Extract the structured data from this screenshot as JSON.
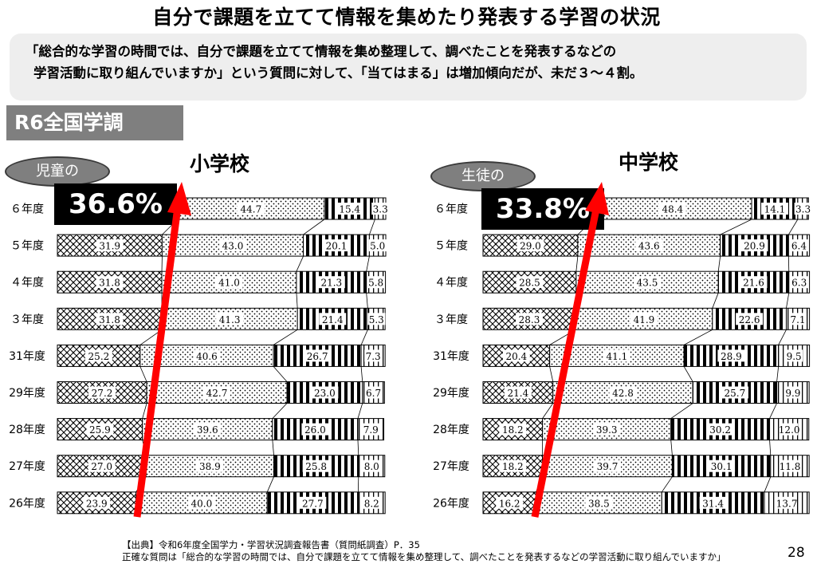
{
  "title": "自分で課題を立てて情報を集めたり発表する学習の状況",
  "summary": {
    "line1": "「総合的な学習の時間では、自分で課題を立てて情報を集め整理して、調べたことを発表するなどの",
    "line2": "学習活動に取り組んでいますか」という質問に対して、「当てはまる」は増加傾向だが、未だ３～４割。"
  },
  "badge": "R6全国学調",
  "colors": {
    "arrow": "#ff0000",
    "badge": "#7f7f7f",
    "summary_bg": "#eeeeee",
    "highlight_bg": "#000000"
  },
  "chart_data": [
    {
      "type": "bar",
      "stacked": true,
      "orientation": "horizontal",
      "title": "小学校",
      "categories": [
        "６年度",
        "５年度",
        "４年度",
        "３年度",
        "31年度",
        "29年度",
        "28年度",
        "27年度",
        "26年度"
      ],
      "series": [
        {
          "values": [
            null,
            31.9,
            31.8,
            31.8,
            25.2,
            27.2,
            25.9,
            27.0,
            23.9
          ]
        },
        {
          "values": [
            44.7,
            43.0,
            41.0,
            41.3,
            40.6,
            42.7,
            39.6,
            38.9,
            40.0
          ]
        },
        {
          "values": [
            15.4,
            20.1,
            21.3,
            21.4,
            26.7,
            23.0,
            26.0,
            25.8,
            27.7
          ]
        },
        {
          "values": [
            3.3,
            5.0,
            5.8,
            5.3,
            7.3,
            6.7,
            7.9,
            8.0,
            8.2
          ]
        }
      ],
      "xlim": [
        0,
        100
      ],
      "annotation": {
        "label": "児童の",
        "value": "36.6%"
      }
    },
    {
      "type": "bar",
      "stacked": true,
      "orientation": "horizontal",
      "title": "中学校",
      "categories": [
        "６年度",
        "５年度",
        "４年度",
        "３年度",
        "31年度",
        "29年度",
        "28年度",
        "27年度",
        "26年度"
      ],
      "series": [
        {
          "values": [
            null,
            29.0,
            28.5,
            28.3,
            20.4,
            21.4,
            18.2,
            18.2,
            16.2
          ]
        },
        {
          "values": [
            48.4,
            43.6,
            43.5,
            41.9,
            41.1,
            42.8,
            39.3,
            39.7,
            38.5
          ]
        },
        {
          "values": [
            14.1,
            20.9,
            21.6,
            22.6,
            28.9,
            25.7,
            30.2,
            30.1,
            31.4
          ]
        },
        {
          "values": [
            3.3,
            6.4,
            6.3,
            7.1,
            9.5,
            9.9,
            12.0,
            11.8,
            13.7
          ]
        }
      ],
      "xlim": [
        0,
        100
      ],
      "annotation": {
        "label": "生徒の",
        "value": "33.8%"
      }
    }
  ],
  "implied_first_segment": [
    36.6,
    33.8
  ],
  "source": {
    "line1": "【出典】令和6年度全国学力・学習状況調査報告書（質問紙調査）P．35",
    "line2": "正確な質問は「総合的な学習の時間では、自分で課題を立てて情報を集め整理して、調べたことを発表するなどの学習活動に取り組んでいますか」"
  },
  "page_number": "28"
}
